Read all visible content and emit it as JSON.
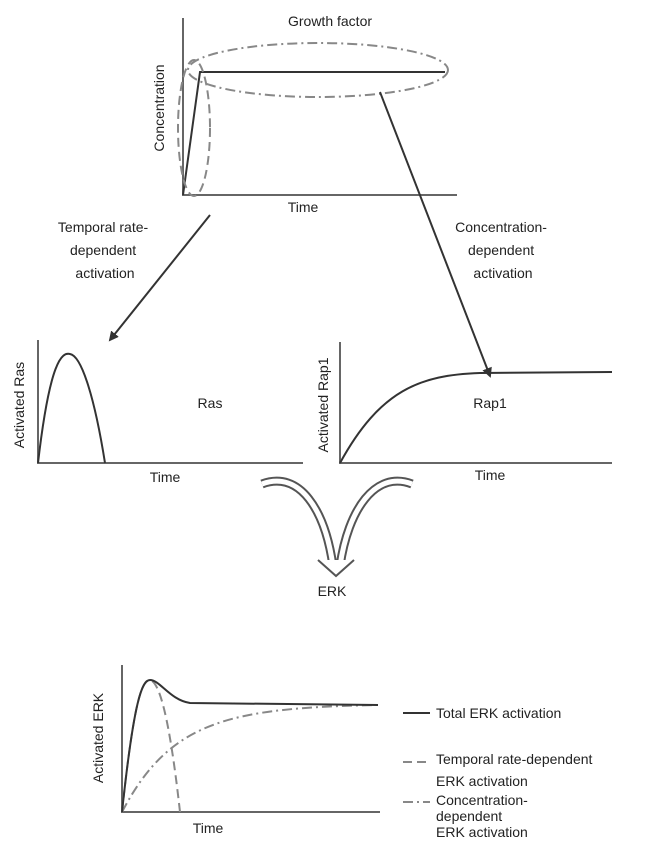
{
  "top_panel": {
    "title": "Growth factor",
    "y_label": "Concentration",
    "x_label": "Time"
  },
  "left_branch": {
    "lines": [
      "Temporal rate-",
      "dependent",
      "activation"
    ]
  },
  "right_branch": {
    "lines": [
      "Concentration-",
      "dependent",
      "activation"
    ]
  },
  "ras_panel": {
    "y_label": "Activated Ras",
    "label": "Ras",
    "x_label": "Time"
  },
  "rap1_panel": {
    "y_label": "Activated Rap1",
    "label": "Rap1",
    "x_label": "Time"
  },
  "merge_label": "ERK",
  "erk_panel": {
    "y_label": "Activated ERK",
    "x_label": "Time"
  },
  "legend": [
    {
      "lines": [
        "Total ERK activation"
      ]
    },
    {
      "lines": [
        "Temporal rate-dependent",
        "ERK activation"
      ]
    },
    {
      "lines": [
        "Concentration-",
        "dependent",
        "ERK activation"
      ]
    }
  ]
}
